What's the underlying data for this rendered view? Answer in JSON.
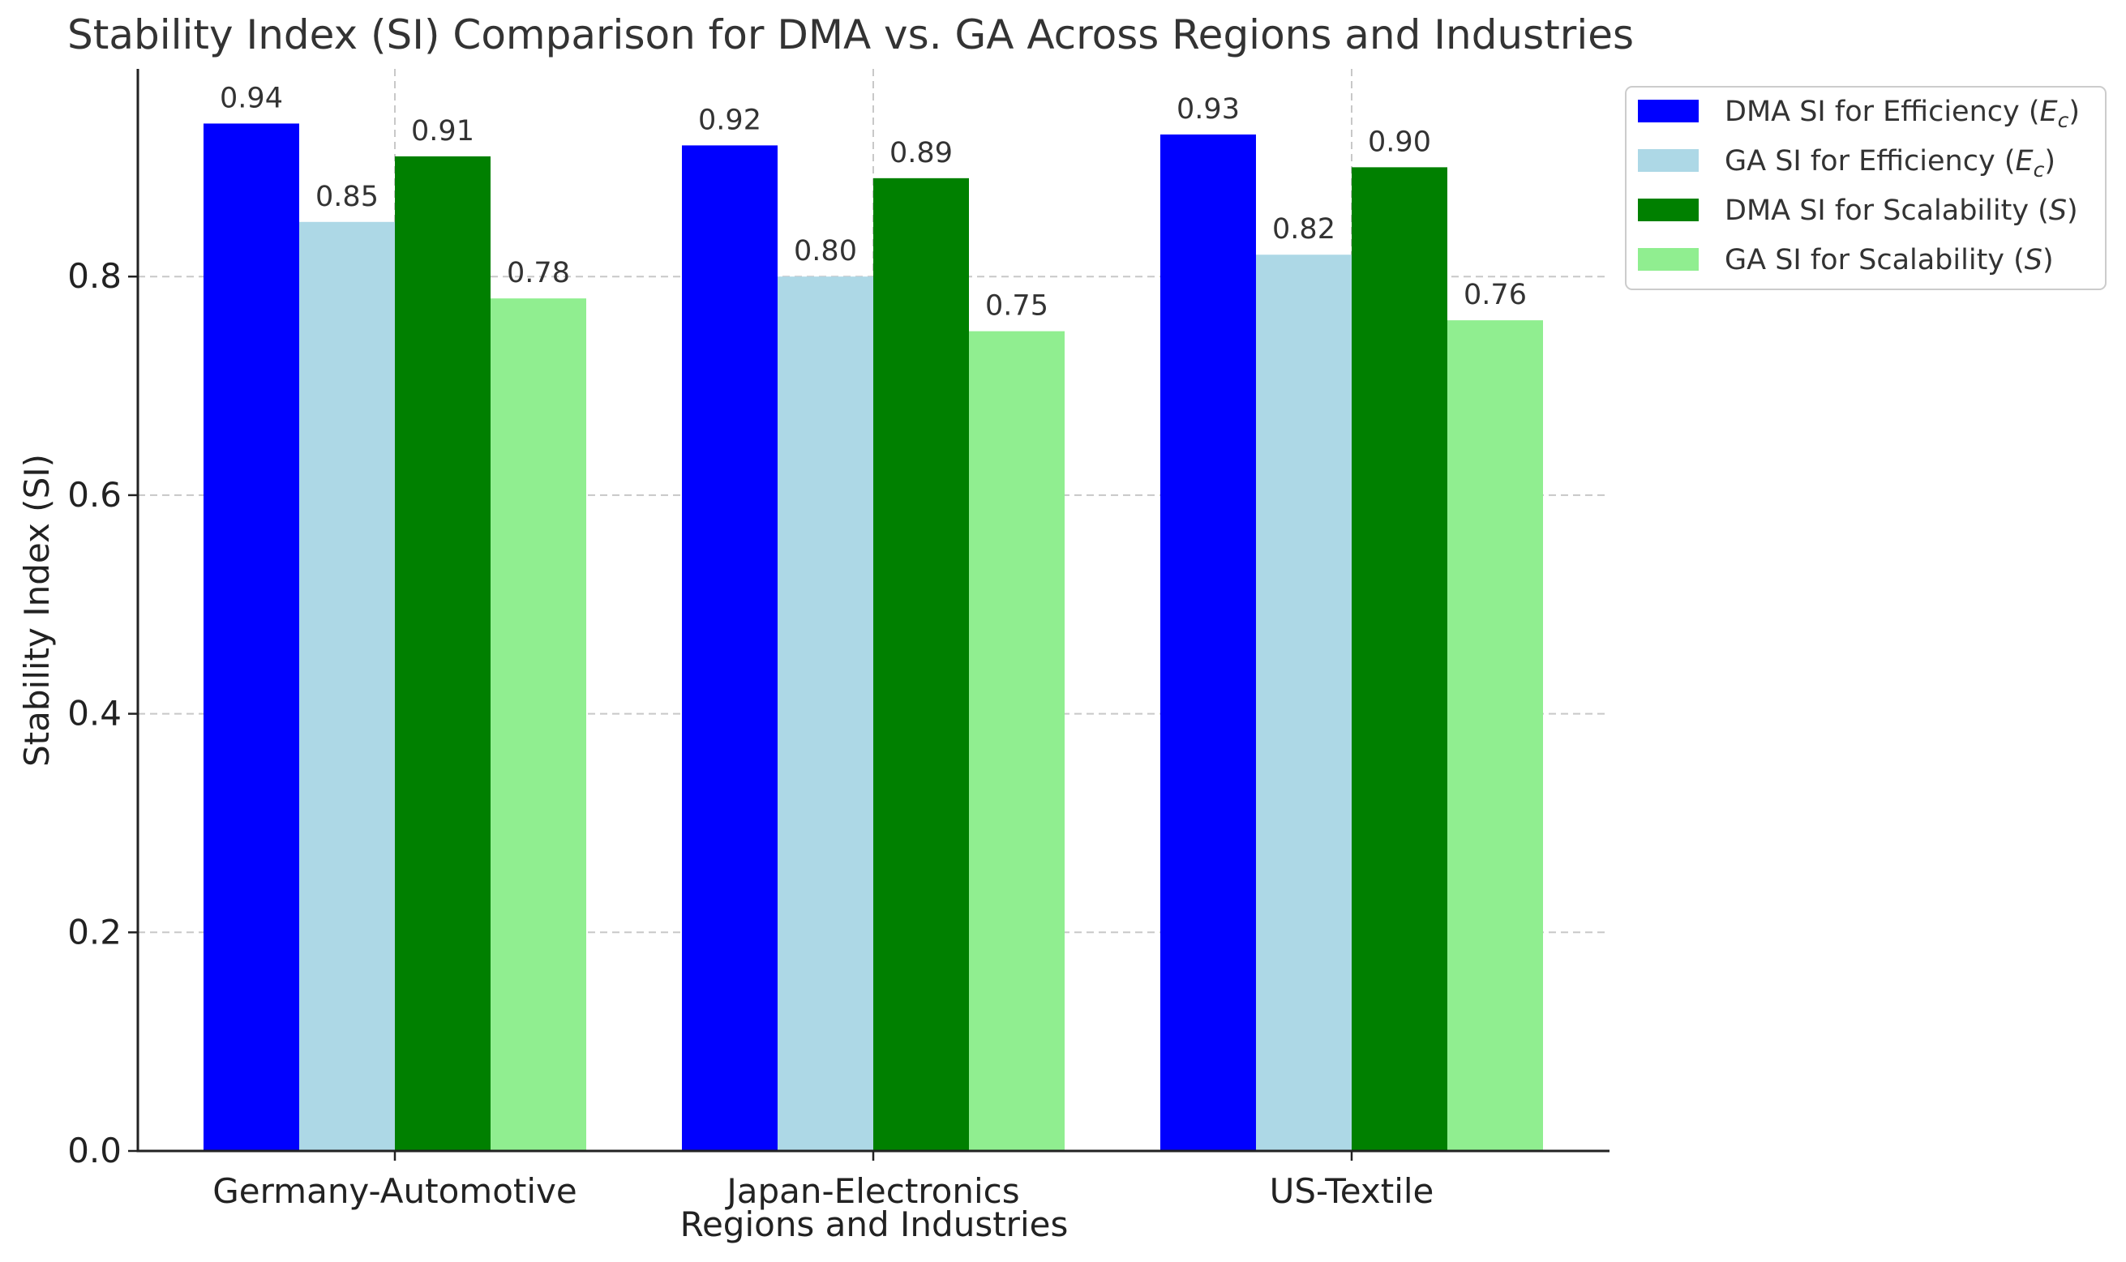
{
  "chart_data": {
    "type": "bar",
    "title": "Stability Index (SI) Comparison for DMA vs. GA Across Regions and Industries",
    "xlabel": "Regions and Industries",
    "ylabel": "Stability Index (SI)",
    "categories": [
      "Germany-Automotive",
      "Japan-Electronics",
      "US-Textile"
    ],
    "series": [
      {
        "name": "DMA SI for Efficiency",
        "name_sym": "E",
        "name_sub": "c",
        "color": "#0000ff",
        "values": [
          0.94,
          0.92,
          0.93
        ],
        "labels": [
          "0.94",
          "0.92",
          "0.93"
        ]
      },
      {
        "name": "GA SI for Efficiency",
        "name_sym": "E",
        "name_sub": "c",
        "color": "#add8e6",
        "values": [
          0.85,
          0.8,
          0.82
        ],
        "labels": [
          "0.85",
          "0.80",
          "0.82"
        ]
      },
      {
        "name": "DMA SI for Scalability",
        "name_sym": "S",
        "name_sub": "",
        "color": "#008000",
        "values": [
          0.91,
          0.89,
          0.9
        ],
        "labels": [
          "0.91",
          "0.89",
          "0.90"
        ]
      },
      {
        "name": "GA SI for Scalability",
        "name_sym": "S",
        "name_sub": "",
        "color": "#90ee90",
        "values": [
          0.78,
          0.75,
          0.76
        ],
        "labels": [
          "0.78",
          "0.75",
          "0.76"
        ]
      }
    ],
    "ylim": [
      0,
      0.99
    ],
    "yticks": [
      0.0,
      0.2,
      0.4,
      0.6,
      0.8
    ],
    "ytick_labels": [
      "0.0",
      "0.2",
      "0.4",
      "0.6",
      "0.8"
    ],
    "grid": true,
    "grid_style": "dashed",
    "legend_position": "outside-top-right"
  }
}
